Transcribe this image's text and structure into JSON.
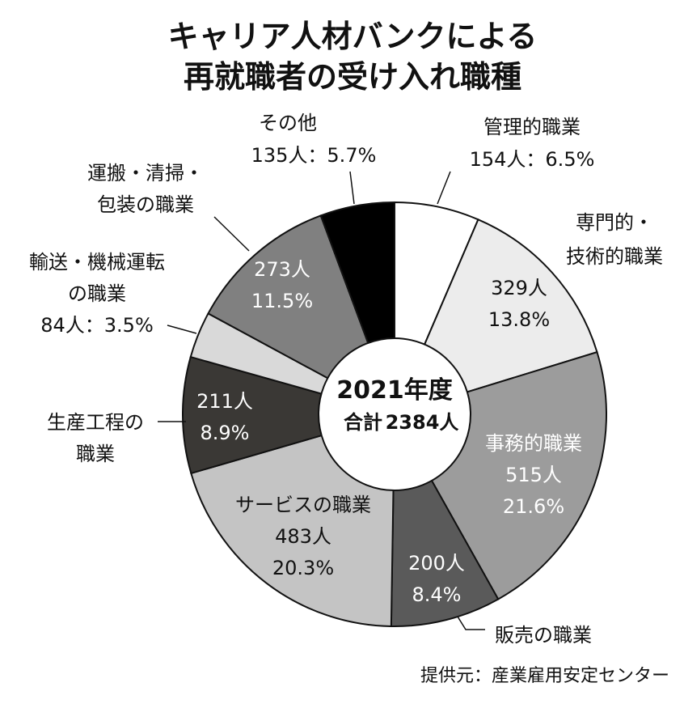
{
  "chart_data": {
    "type": "pie",
    "title": "キャリア人材バンクによる 再就職者の受け入れ職種",
    "title_lines": [
      "キャリア人材バンクによる",
      "再就職者の受け入れ職種"
    ],
    "center": {
      "year": "2021年度",
      "total_label": "合計",
      "total_value": "2384人"
    },
    "source": "提供元：産業雇用安定センター",
    "total": 2384,
    "slices": [
      {
        "name": "管理的職業",
        "label_lines": [
          "管理的職業",
          "154人：6.5%"
        ],
        "count": 154,
        "percent": 6.5,
        "count_text": "154人",
        "percent_text": "6.5%",
        "color": "#ffffff",
        "text_color": "#111111",
        "label_outside": true
      },
      {
        "name": "専門的・技術的職業",
        "label_lines": [
          "専門的・",
          "技術的職業"
        ],
        "count": 329,
        "percent": 13.8,
        "count_text": "329人",
        "percent_text": "13.8%",
        "color": "#ececec",
        "text_color": "#111111",
        "label_outside": false
      },
      {
        "name": "事務的職業",
        "label_lines": [],
        "count": 515,
        "percent": 21.6,
        "count_text": "515人",
        "percent_text": "21.6%",
        "color": "#9c9c9c",
        "text_color": "#ffffff",
        "label_outside": false,
        "name_inside": true
      },
      {
        "name": "販売の職業",
        "label_lines": [
          "販売の職業"
        ],
        "count": 200,
        "percent": 8.4,
        "count_text": "200人",
        "percent_text": "8.4%",
        "color": "#5a5a5a",
        "text_color": "#ffffff",
        "label_outside": false
      },
      {
        "name": "サービスの職業",
        "label_lines": [],
        "count": 483,
        "percent": 20.3,
        "count_text": "483人",
        "percent_text": "20.3%",
        "color": "#c4c4c4",
        "text_color": "#111111",
        "label_outside": false,
        "name_inside": true
      },
      {
        "name": "生産工程の職業",
        "label_lines": [
          "生産工程の",
          "職業"
        ],
        "count": 211,
        "percent": 8.9,
        "count_text": "211人",
        "percent_text": "8.9%",
        "color": "#3a3835",
        "text_color": "#ffffff",
        "label_outside": false
      },
      {
        "name": "輸送・機械運転の職業",
        "label_lines": [
          "輸送・機械運転",
          "の職業",
          "84人：3.5%"
        ],
        "count": 84,
        "percent": 3.5,
        "count_text": "84人",
        "percent_text": "3.5%",
        "color": "#d9d9d9",
        "text_color": "#111111",
        "label_outside": true
      },
      {
        "name": "運搬・清掃・包装の職業",
        "label_lines": [
          "運搬・清掃・",
          "包装の職業"
        ],
        "count": 273,
        "percent": 11.5,
        "count_text": "273人",
        "percent_text": "11.5%",
        "color": "#808080",
        "text_color": "#ffffff",
        "label_outside": false
      },
      {
        "name": "その他",
        "label_lines": [
          "その他",
          "135人：5.7%"
        ],
        "count": 135,
        "percent": 5.7,
        "count_text": "135人",
        "percent_text": "5.7%",
        "color": "#000000",
        "text_color": "#ffffff",
        "label_outside": true
      }
    ]
  }
}
